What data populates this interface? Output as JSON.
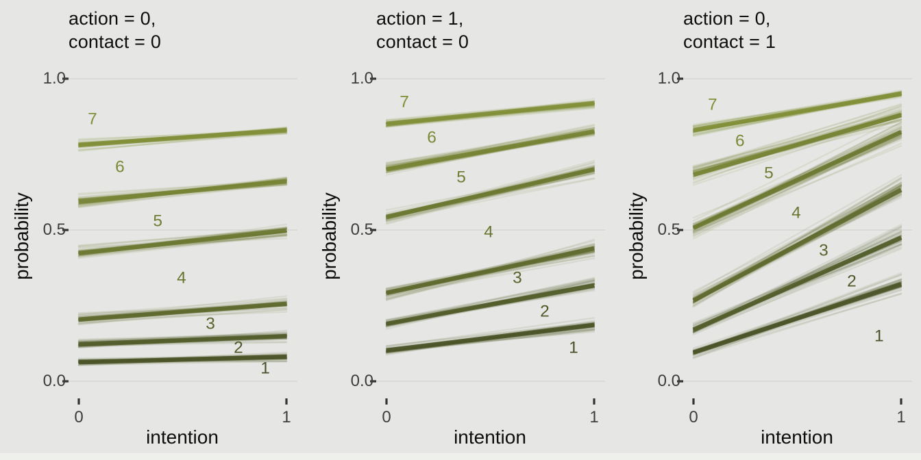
{
  "chart_data": {
    "type": "line",
    "description": "Posterior spaghetti plot of cumulative probabilities (outcome bands labeled 1-7) versus intention, faceted by action/contact condition",
    "xlabel": "intention",
    "ylabel": "probability",
    "x_ticks": [
      "0",
      "1"
    ],
    "y_ticks": [
      "0.0",
      "0.5",
      "1.0"
    ],
    "x_range": [
      0,
      1
    ],
    "ylim": [
      0,
      1
    ],
    "grid": "horizontal-only",
    "legend": "none",
    "line_colors": [
      "#4b5428",
      "#535d2b",
      "#5e692e",
      "#6b7831",
      "#768334",
      "#828f38"
    ],
    "label_colors": [
      "#475129",
      "#50592b",
      "#5a642d",
      "#687530",
      "#707d33",
      "#7b8836",
      "#818e38"
    ],
    "panels": [
      {
        "title_line1": "action = 0,",
        "title_line2": "contact = 0",
        "cumulative_lines": [
          {
            "k": 1,
            "p0": 0.063,
            "p1": 0.081,
            "spread0": 0.008,
            "spread1": 0.01
          },
          {
            "k": 2,
            "p0": 0.122,
            "p1": 0.149,
            "spread0": 0.01,
            "spread1": 0.012
          },
          {
            "k": 3,
            "p0": 0.204,
            "p1": 0.256,
            "spread0": 0.012,
            "spread1": 0.015
          },
          {
            "k": 4,
            "p0": 0.423,
            "p1": 0.498,
            "spread0": 0.017,
            "spread1": 0.016
          },
          {
            "k": 5,
            "p0": 0.593,
            "p1": 0.661,
            "spread0": 0.018,
            "spread1": 0.014
          },
          {
            "k": 6,
            "p0": 0.781,
            "p1": 0.83,
            "spread0": 0.013,
            "spread1": 0.012
          }
        ],
        "band_labels": [
          {
            "label": "1",
            "x": 0.898,
            "y": 0.045
          },
          {
            "label": "2",
            "x": 0.769,
            "y": 0.113
          },
          {
            "label": "3",
            "x": 0.634,
            "y": 0.192
          },
          {
            "label": "4",
            "x": 0.495,
            "y": 0.344
          },
          {
            "label": "5",
            "x": 0.38,
            "y": 0.532
          },
          {
            "label": "6",
            "x": 0.198,
            "y": 0.71
          },
          {
            "label": "7",
            "x": 0.066,
            "y": 0.869
          }
        ]
      },
      {
        "title_line1": "action = 1,",
        "title_line2": "contact = 0",
        "cumulative_lines": [
          {
            "k": 1,
            "p0": 0.102,
            "p1": 0.186,
            "spread0": 0.009,
            "spread1": 0.013
          },
          {
            "k": 2,
            "p0": 0.19,
            "p1": 0.317,
            "spread0": 0.011,
            "spread1": 0.016
          },
          {
            "k": 3,
            "p0": 0.292,
            "p1": 0.439,
            "spread0": 0.013,
            "spread1": 0.02
          },
          {
            "k": 4,
            "p0": 0.543,
            "p1": 0.7,
            "spread0": 0.016,
            "spread1": 0.02
          },
          {
            "k": 5,
            "p0": 0.7,
            "p1": 0.826,
            "spread0": 0.016,
            "spread1": 0.015
          },
          {
            "k": 6,
            "p0": 0.851,
            "p1": 0.919,
            "spread0": 0.011,
            "spread1": 0.01
          }
        ],
        "band_labels": [
          {
            "label": "1",
            "x": 0.901,
            "y": 0.113
          },
          {
            "label": "2",
            "x": 0.762,
            "y": 0.233
          },
          {
            "label": "3",
            "x": 0.63,
            "y": 0.344
          },
          {
            "label": "4",
            "x": 0.492,
            "y": 0.495
          },
          {
            "label": "5",
            "x": 0.36,
            "y": 0.677
          },
          {
            "label": "6",
            "x": 0.218,
            "y": 0.808
          },
          {
            "label": "7",
            "x": 0.086,
            "y": 0.925
          }
        ]
      },
      {
        "title_line1": "action = 0,",
        "title_line2": "contact = 1",
        "cumulative_lines": [
          {
            "k": 1,
            "p0": 0.095,
            "p1": 0.321,
            "spread0": 0.01,
            "spread1": 0.022
          },
          {
            "k": 2,
            "p0": 0.17,
            "p1": 0.475,
            "spread0": 0.013,
            "spread1": 0.028
          },
          {
            "k": 3,
            "p0": 0.267,
            "p1": 0.633,
            "spread0": 0.015,
            "spread1": 0.028
          },
          {
            "k": 4,
            "p0": 0.507,
            "p1": 0.824,
            "spread0": 0.024,
            "spread1": 0.028
          },
          {
            "k": 5,
            "p0": 0.683,
            "p1": 0.88,
            "spread0": 0.028,
            "spread1": 0.02
          },
          {
            "k": 6,
            "p0": 0.83,
            "p1": 0.95,
            "spread0": 0.016,
            "spread1": 0.011
          }
        ],
        "band_labels": [
          {
            "label": "1",
            "x": 0.894,
            "y": 0.152
          },
          {
            "label": "2",
            "x": 0.762,
            "y": 0.333
          },
          {
            "label": "3",
            "x": 0.627,
            "y": 0.434
          },
          {
            "label": "4",
            "x": 0.495,
            "y": 0.559
          },
          {
            "label": "5",
            "x": 0.363,
            "y": 0.69
          },
          {
            "label": "6",
            "x": 0.224,
            "y": 0.796
          },
          {
            "label": "7",
            "x": 0.092,
            "y": 0.916
          }
        ]
      }
    ]
  },
  "style": {
    "background": "#e6e7e4",
    "grid_color": "#d5d6d2",
    "tick_color": "#333333",
    "tick_label_color": "#3d3d3d",
    "text_color": "#0d0d0d"
  }
}
